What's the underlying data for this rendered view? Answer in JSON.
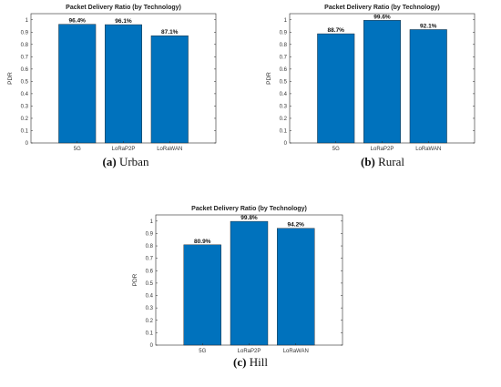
{
  "chart_data": [
    {
      "type": "bar",
      "title": "Packet Delivery Ratio (by Technology)",
      "ylabel": "PDR",
      "xlabel": "",
      "categories": [
        "5G",
        "LoRaP2P",
        "LoRaWAN"
      ],
      "values": [
        0.964,
        0.961,
        0.871
      ],
      "value_labels": [
        "96.4%",
        "96.1%",
        "87.1%"
      ],
      "ylim": [
        0,
        1.05
      ],
      "yticks": [
        "0",
        "0.1",
        "0.2",
        "0.3",
        "0.4",
        "0.5",
        "0.6",
        "0.7",
        "0.8",
        "0.9",
        "1"
      ],
      "color": "#0072BD",
      "grid": false,
      "caption_letter": "(a)",
      "caption_text": "Urban"
    },
    {
      "type": "bar",
      "title": "Packet Delivery Ratio (by Technology)",
      "ylabel": "PDR",
      "xlabel": "",
      "categories": [
        "5G",
        "LoRaP2P",
        "LoRaWAN"
      ],
      "values": [
        0.887,
        0.996,
        0.921
      ],
      "value_labels": [
        "88.7%",
        "99.6%",
        "92.1%"
      ],
      "ylim": [
        0,
        1.05
      ],
      "yticks": [
        "0",
        "0.1",
        "0.2",
        "0.3",
        "0.4",
        "0.5",
        "0.6",
        "0.7",
        "0.8",
        "0.9",
        "1"
      ],
      "color": "#0072BD",
      "grid": false,
      "caption_letter": "(b)",
      "caption_text": "Rural"
    },
    {
      "type": "bar",
      "title": "Packet Delivery Ratio (by Technology)",
      "ylabel": "PDR",
      "xlabel": "",
      "categories": [
        "5G",
        "LoRaP2P",
        "LoRaWAN"
      ],
      "values": [
        0.809,
        0.998,
        0.942
      ],
      "value_labels": [
        "80.9%",
        "99.8%",
        "94.2%"
      ],
      "ylim": [
        0,
        1.05
      ],
      "yticks": [
        "0",
        "0.1",
        "0.2",
        "0.3",
        "0.4",
        "0.5",
        "0.6",
        "0.7",
        "0.8",
        "0.9",
        "1"
      ],
      "color": "#0072BD",
      "grid": false,
      "caption_letter": "(c)",
      "caption_text": "Hill"
    }
  ]
}
